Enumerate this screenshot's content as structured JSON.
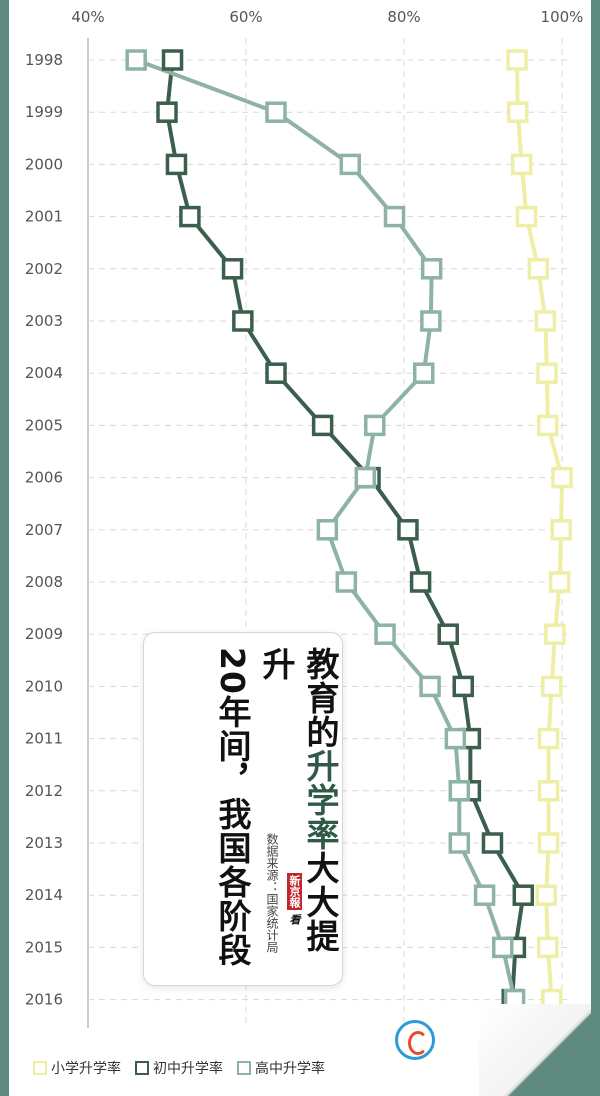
{
  "chart_data": {
    "type": "line",
    "orientation": "vertical-categories",
    "title": "教育的升学率大大提升 20年间，我国各阶段",
    "title_line1_parts": [
      "教育的",
      "升学率",
      "大大提升"
    ],
    "title_line2": "20年间，我国各阶段",
    "source": "数据来源：国家统计局",
    "xlim": [
      40,
      100
    ],
    "x_ticks": [
      "40%",
      "60%",
      "80%",
      "100%"
    ],
    "x_tick_values": [
      40,
      60,
      80,
      100
    ],
    "grid": true,
    "legend_position": "bottom-left",
    "categories": [
      "1998",
      "1999",
      "2000",
      "2001",
      "2002",
      "2003",
      "2004",
      "2005",
      "2006",
      "2007",
      "2008",
      "2009",
      "2010",
      "2011",
      "2012",
      "2013",
      "2014",
      "2015",
      "2016"
    ],
    "series": [
      {
        "name": "小学升学率",
        "color": "#eeeea6",
        "values": [
          94.3,
          94.4,
          94.9,
          95.5,
          97.0,
          97.9,
          98.1,
          98.2,
          100.0,
          99.9,
          99.7,
          99.1,
          98.7,
          98.3,
          98.3,
          98.3,
          98.0,
          98.2,
          98.7
        ]
      },
      {
        "name": "初中升学率",
        "color": "#3c5e4c",
        "values": [
          50.7,
          50.0,
          51.2,
          52.9,
          58.3,
          59.6,
          63.8,
          69.7,
          75.7,
          80.5,
          82.1,
          85.6,
          87.5,
          88.4,
          88.4,
          91.2,
          95.1,
          94.1,
          93.7
        ]
      },
      {
        "name": "高中升学率",
        "color": "#8eb3a6",
        "values": [
          46.1,
          63.8,
          73.2,
          78.8,
          83.5,
          83.4,
          82.5,
          76.3,
          75.1,
          70.3,
          72.7,
          77.6,
          83.3,
          86.5,
          87.0,
          87.0,
          90.2,
          92.5,
          94.0
        ]
      }
    ]
  },
  "watermark_text": "看"
}
